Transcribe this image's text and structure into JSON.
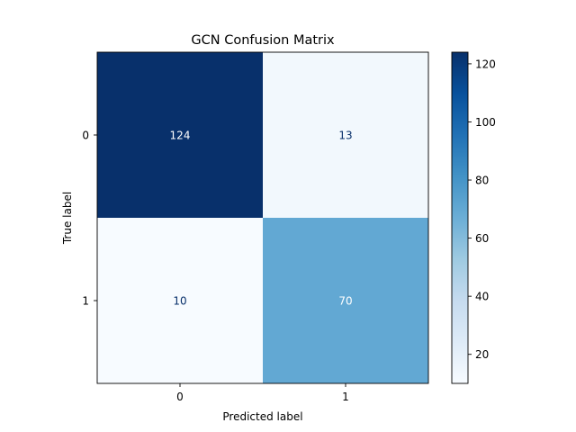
{
  "chart_data": {
    "type": "heatmap",
    "title": "GCN Confusion Matrix",
    "xlabel": "Predicted label",
    "ylabel": "True label",
    "x_categories": [
      "0",
      "1"
    ],
    "y_categories": [
      "0",
      "1"
    ],
    "matrix": [
      [
        124,
        13
      ],
      [
        10,
        70
      ]
    ],
    "colormap": "Blues",
    "colorbar": {
      "range": [
        10,
        124
      ],
      "ticks": [
        20,
        40,
        60,
        80,
        100,
        120
      ],
      "tick_labels": [
        "20",
        "40",
        "60",
        "80",
        "100",
        "120"
      ]
    },
    "grid": false
  }
}
